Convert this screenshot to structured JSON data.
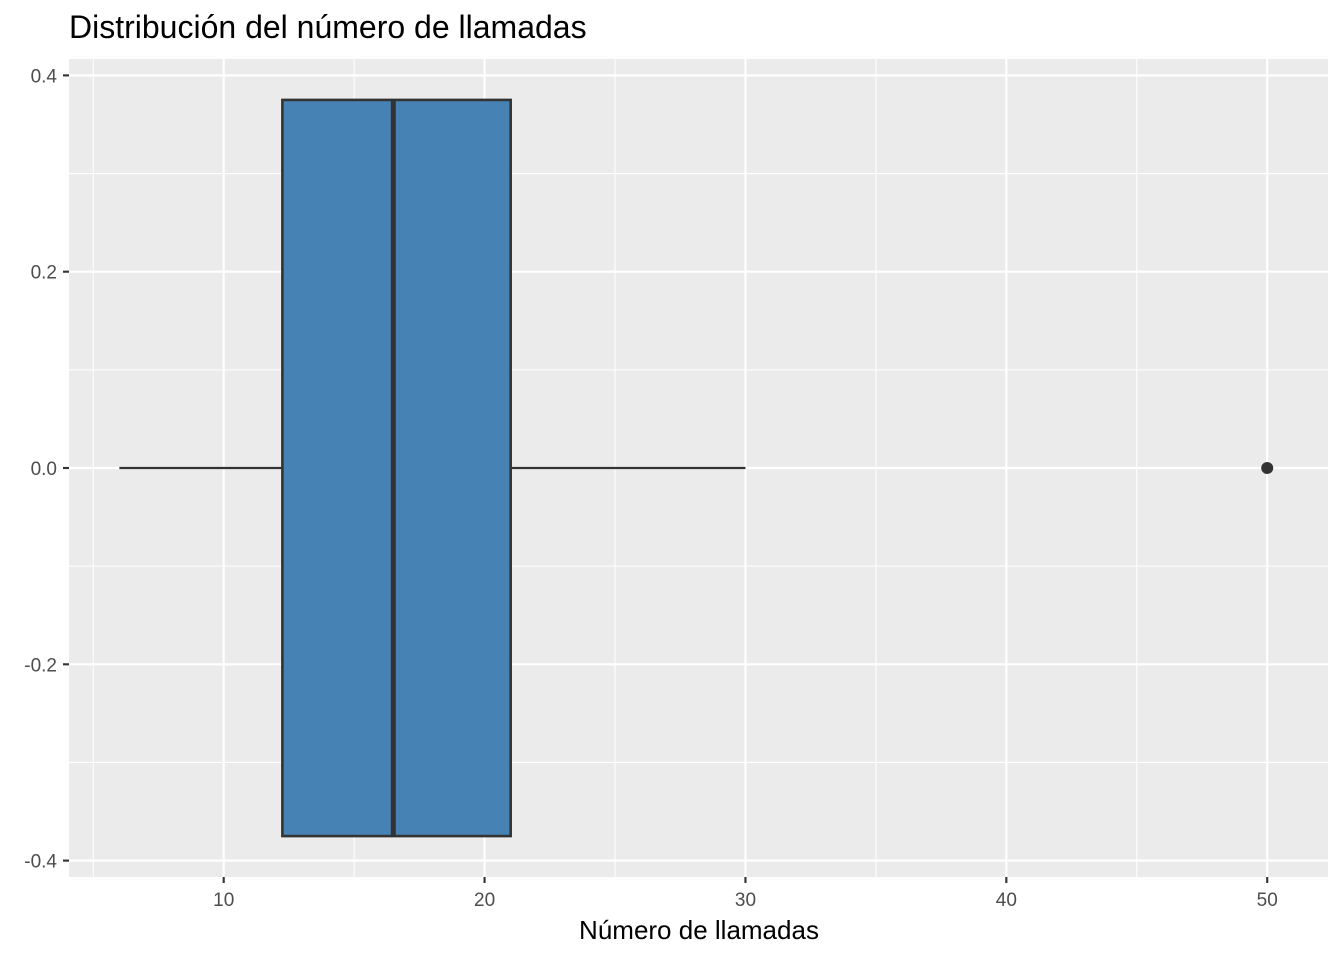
{
  "chart_data": {
    "type": "boxplot",
    "title": "Distribución del número de llamadas",
    "xlabel": "Número de llamadas",
    "ylabel": "",
    "orientation": "horizontal",
    "xlim": [
      4.07,
      52.33
    ],
    "ylim": [
      -0.4167,
      0.4167
    ],
    "x_ticks": [
      10,
      20,
      30,
      40,
      50
    ],
    "x_tick_labels": [
      "10",
      "20",
      "30",
      "40",
      "50"
    ],
    "x_minor_ticks": [
      5,
      15,
      25,
      35,
      45
    ],
    "y_ticks": [
      -0.4,
      -0.2,
      0.0,
      0.2,
      0.4
    ],
    "y_tick_labels": [
      "-0.4",
      "-0.2",
      "0.0",
      "0.2",
      "0.4"
    ],
    "y_minor_ticks": [
      -0.3,
      -0.1,
      0.1,
      0.3
    ],
    "box": {
      "position": 0,
      "half_width": 0.375,
      "whisker_low": 6,
      "q1": 12.25,
      "median": 16.5,
      "q3": 21,
      "whisker_high": 30,
      "outliers": [
        50
      ]
    },
    "grid": true,
    "legend": "none",
    "colors": {
      "panel_background": "#EBEBEB",
      "grid": "#FFFFFF",
      "box_fill": "#4682B4",
      "box_line": "#333333",
      "tick_text": "#4D4D4D",
      "tick_mark": "#333333",
      "title_text": "#000000"
    }
  }
}
